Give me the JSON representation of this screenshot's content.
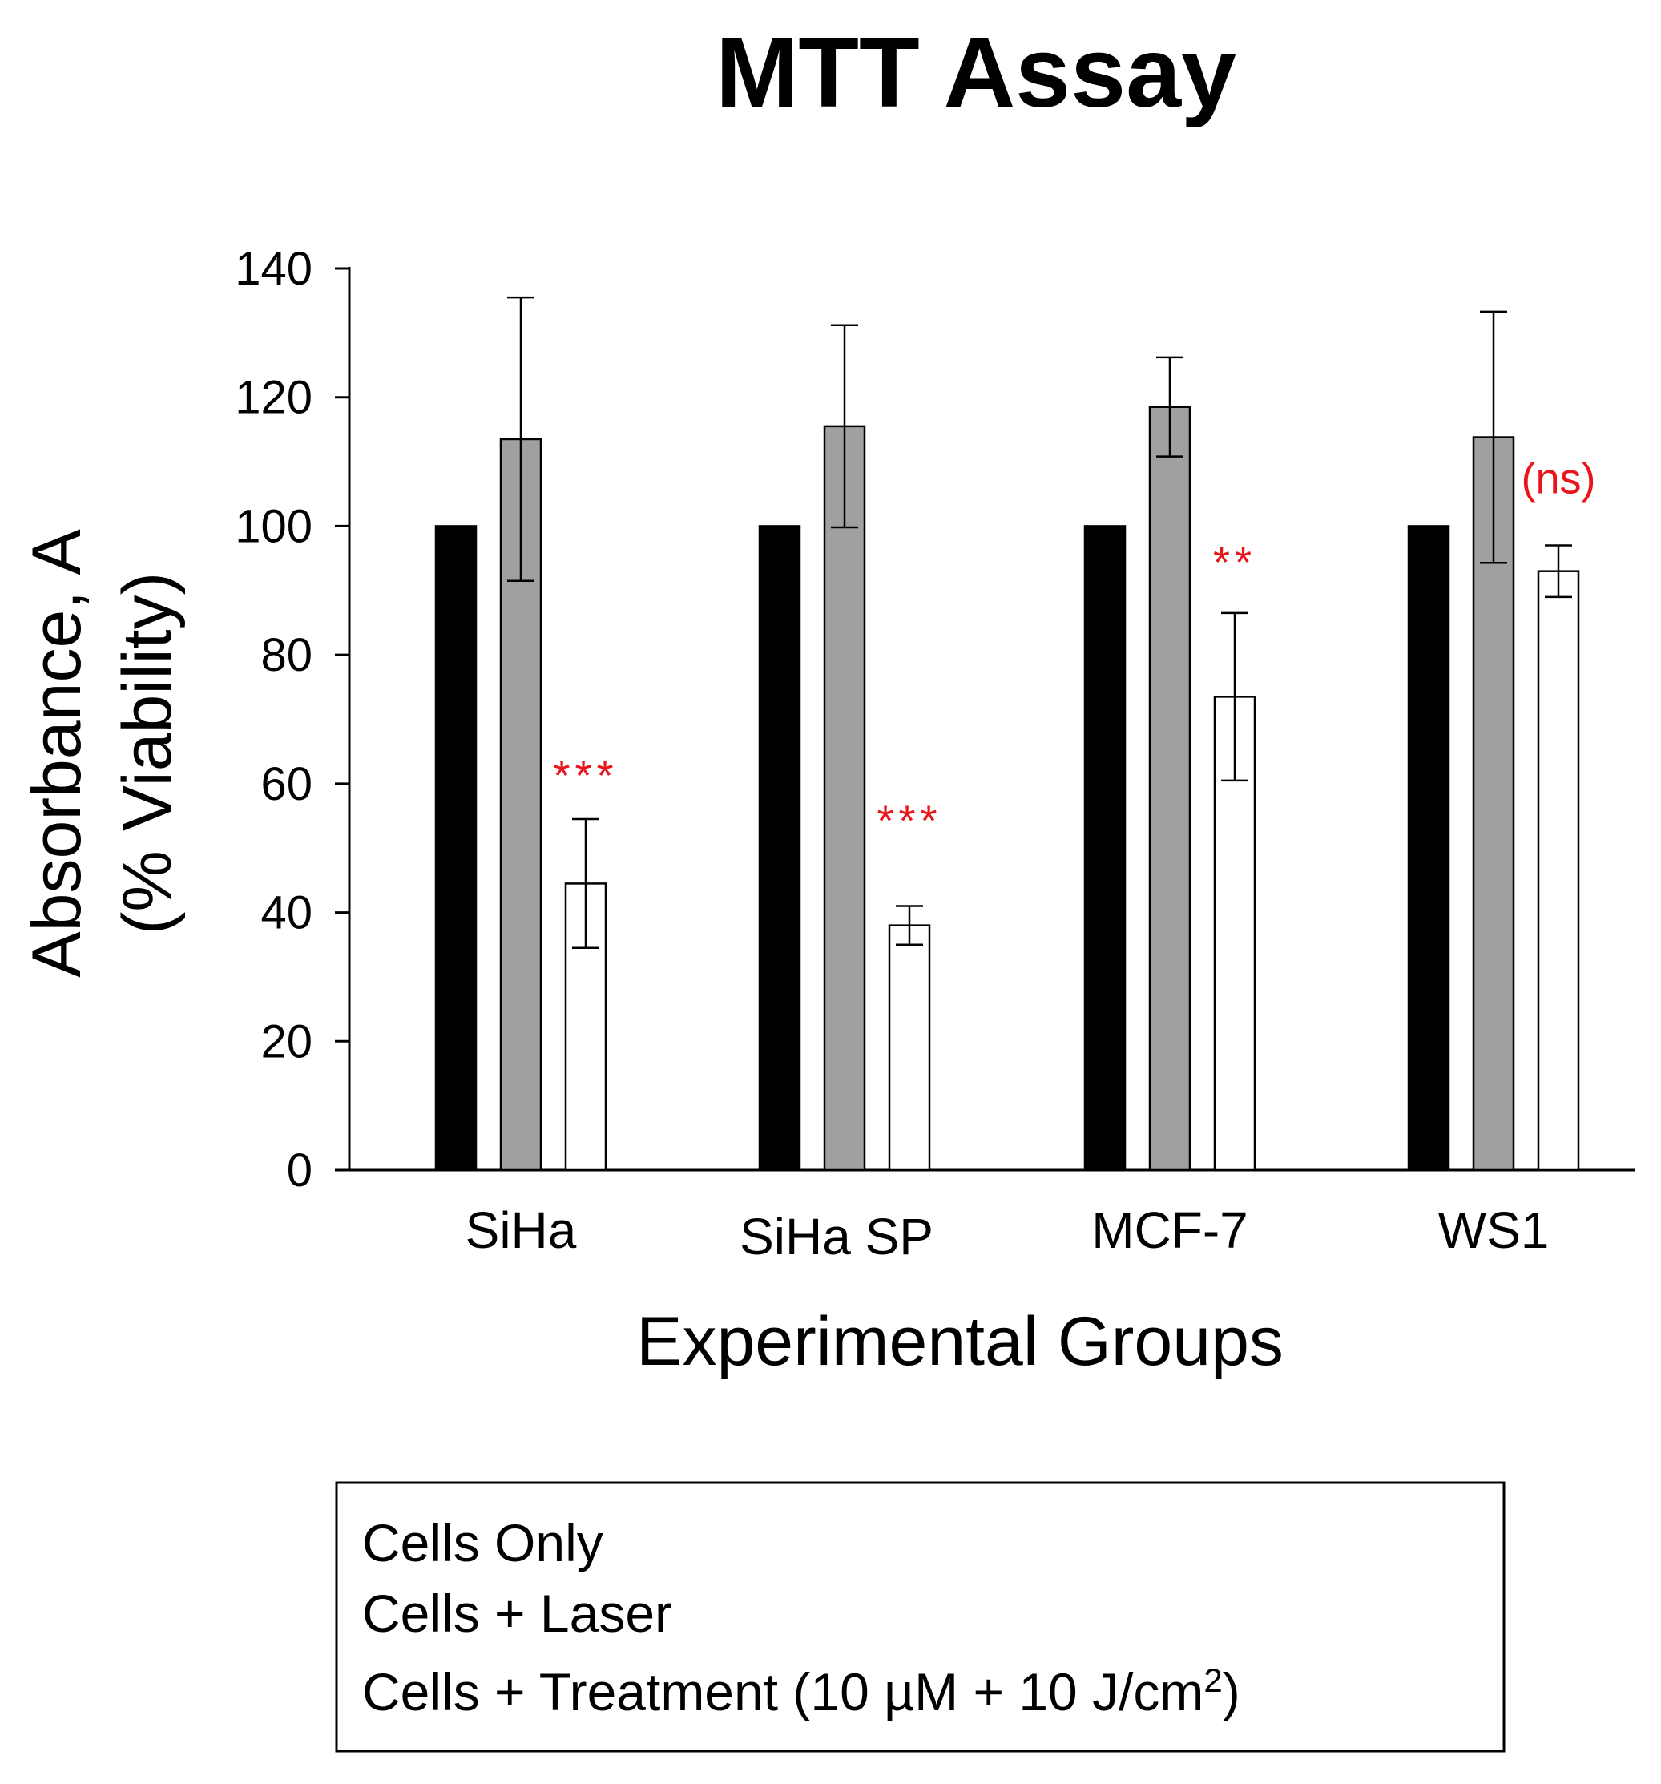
{
  "chart_data": {
    "type": "bar",
    "title": "MTT Assay",
    "xlabel": "Experimental Groups",
    "ylabel_line1": "Absorbance, A",
    "ylabel_line2": "(% Viability)",
    "ylim": [
      0,
      140
    ],
    "yticks": [
      0,
      20,
      40,
      60,
      80,
      100,
      120,
      140
    ],
    "categories": [
      "SiHa",
      "SiHa SP",
      "MCF-7",
      "WS1"
    ],
    "series": [
      {
        "name": "Cells Only",
        "color": "#000000",
        "values": [
          100,
          100,
          100,
          100
        ],
        "errors": [
          0,
          0,
          0,
          0
        ]
      },
      {
        "name": "Cells + Laser",
        "color": "#a0a0a0",
        "values": [
          113.5,
          115.5,
          118.5,
          113.8
        ],
        "errors": [
          22,
          15.7,
          7.7,
          19.5
        ]
      },
      {
        "name": "Cells + Treatment (10 µM + 10 J/cm",
        "name_superscript": "2",
        "name_suffix": ")",
        "color": "#ffffff",
        "values": [
          44.5,
          38,
          73.5,
          93
        ],
        "errors": [
          10,
          3,
          13,
          4
        ]
      }
    ],
    "annotations": [
      "***",
      "***",
      "**",
      "(ns)"
    ],
    "legend": {
      "position": "bottom",
      "entries": [
        "Cells Only",
        "Cells + Laser",
        "Cells + Treatment (10 µM + 10 J/cm"
      ],
      "superscript": "2",
      "suffix": ")"
    },
    "grid": false
  }
}
